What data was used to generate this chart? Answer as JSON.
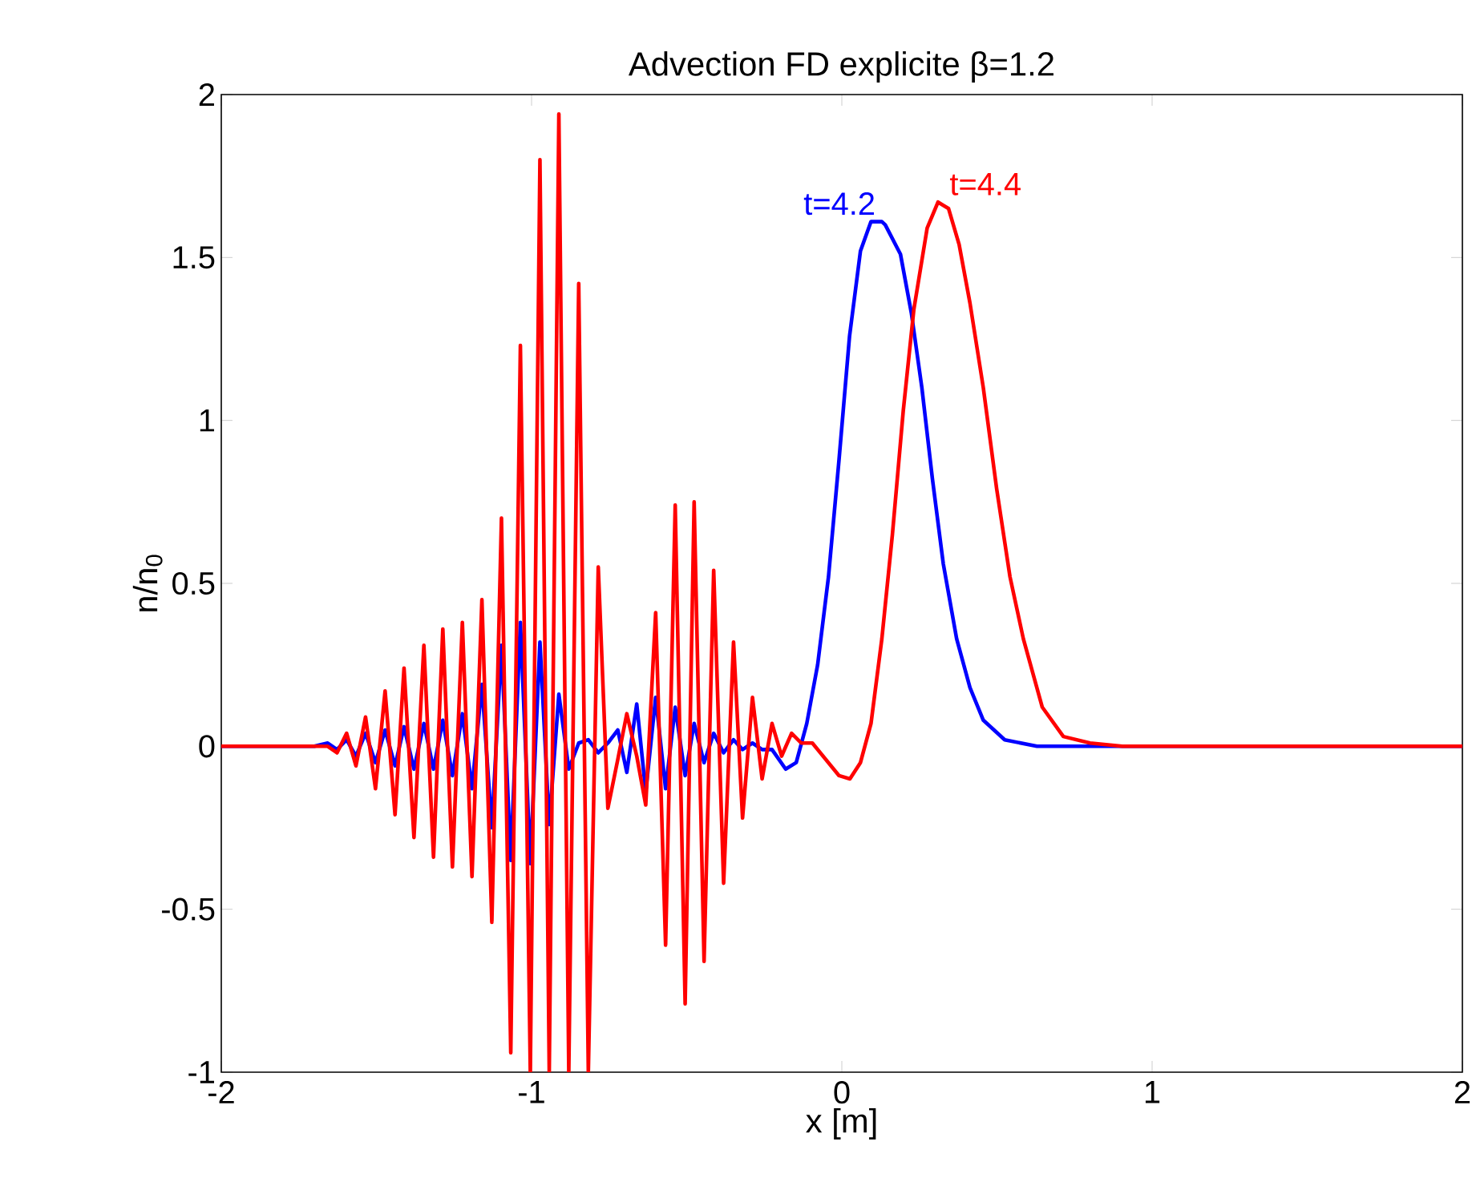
{
  "chart_data": {
    "type": "line",
    "title": "Advection FD explicite β=1.2",
    "xlabel": "x [m]",
    "ylabel": "n/n$_{0}$",
    "xlim": [
      -2,
      2
    ],
    "ylim": [
      -1,
      2
    ],
    "xticks": [
      -2,
      -1,
      0,
      1,
      2
    ],
    "yticks": [
      -1,
      -0.5,
      0,
      0.5,
      1,
      1.5,
      2
    ],
    "grid": false,
    "legend": false,
    "series": [
      {
        "name": "t=4.2",
        "color": "#0000ff",
        "x": [
          -2,
          -1.7,
          -1.657,
          -1.627,
          -1.596,
          -1.566,
          -1.535,
          -1.503,
          -1.472,
          -1.44,
          -1.411,
          -1.379,
          -1.347,
          -1.316,
          -1.286,
          -1.255,
          -1.223,
          -1.192,
          -1.16,
          -1.128,
          -1.097,
          -1.067,
          -1.036,
          -1.004,
          -0.973,
          -0.943,
          -0.912,
          -0.88,
          -0.848,
          -0.817,
          -0.785,
          -0.754,
          -0.722,
          -0.693,
          -0.661,
          -0.632,
          -0.6,
          -0.568,
          -0.537,
          -0.505,
          -0.476,
          -0.444,
          -0.413,
          -0.381,
          -0.349,
          -0.32,
          -0.288,
          -0.257,
          -0.225,
          -0.181,
          -0.147,
          -0.113,
          -0.078,
          -0.043,
          -0.009,
          0.025,
          0.06,
          0.094,
          0.129,
          0.14,
          0.189,
          0.224,
          0.258,
          0.292,
          0.327,
          0.37,
          0.413,
          0.456,
          0.525,
          0.629,
          0.8,
          2
        ],
        "values": [
          0,
          0,
          0.01,
          -0.01,
          0.02,
          -0.03,
          0.04,
          -0.05,
          0.05,
          -0.06,
          0.06,
          -0.07,
          0.07,
          -0.07,
          0.08,
          -0.09,
          0.1,
          -0.13,
          0.19,
          -0.25,
          0.31,
          -0.35,
          0.38,
          -0.36,
          0.32,
          -0.24,
          0.16,
          -0.07,
          0.01,
          0.02,
          -0.02,
          0.01,
          0.05,
          -0.08,
          0.13,
          -0.14,
          0.15,
          -0.13,
          0.12,
          -0.09,
          0.07,
          -0.05,
          0.04,
          -0.02,
          0.02,
          -0.01,
          0.01,
          -0.01,
          -0.01,
          -0.07,
          -0.05,
          0.07,
          0.25,
          0.52,
          0.88,
          1.26,
          1.52,
          1.61,
          1.61,
          1.6,
          1.51,
          1.33,
          1.1,
          0.82,
          0.56,
          0.33,
          0.18,
          0.08,
          0.02,
          0,
          0,
          0
        ]
      },
      {
        "name": "t=4.4",
        "color": "#ff0000",
        "x": [
          -2,
          -1.726,
          -1.657,
          -1.627,
          -1.596,
          -1.566,
          -1.535,
          -1.503,
          -1.472,
          -1.44,
          -1.411,
          -1.379,
          -1.347,
          -1.316,
          -1.286,
          -1.255,
          -1.223,
          -1.192,
          -1.16,
          -1.128,
          -1.097,
          -1.067,
          -1.036,
          -1.004,
          -0.973,
          -0.943,
          -0.912,
          -0.88,
          -0.848,
          -0.817,
          -0.785,
          -0.754,
          -0.722,
          -0.693,
          -0.661,
          -0.632,
          -0.6,
          -0.568,
          -0.537,
          -0.505,
          -0.476,
          -0.444,
          -0.413,
          -0.381,
          -0.349,
          -0.32,
          -0.288,
          -0.257,
          -0.225,
          -0.194,
          -0.162,
          -0.131,
          -0.095,
          -0.009,
          0.026,
          0.06,
          0.094,
          0.129,
          0.163,
          0.198,
          0.232,
          0.275,
          0.31,
          0.344,
          0.378,
          0.413,
          0.456,
          0.499,
          0.542,
          0.585,
          0.646,
          0.714,
          0.8,
          0.904,
          2
        ],
        "values": [
          0,
          0,
          0,
          -0.02,
          0.04,
          -0.06,
          0.09,
          -0.13,
          0.17,
          -0.21,
          0.24,
          -0.28,
          0.31,
          -0.34,
          0.36,
          -0.37,
          0.38,
          -0.4,
          0.45,
          -0.54,
          0.7,
          -0.94,
          1.23,
          -1,
          1.8,
          -1,
          1.94,
          -1,
          1.42,
          -1,
          0.55,
          -0.19,
          -0.04,
          0.1,
          -0.03,
          -0.18,
          0.41,
          -0.61,
          0.74,
          -0.79,
          0.75,
          -0.66,
          0.54,
          -0.42,
          0.32,
          -0.22,
          0.15,
          -0.1,
          0.07,
          -0.03,
          0.04,
          0.01,
          0.01,
          -0.09,
          -0.1,
          -0.05,
          0.07,
          0.33,
          0.65,
          1.03,
          1.34,
          1.59,
          1.67,
          1.65,
          1.54,
          1.36,
          1.1,
          0.79,
          0.52,
          0.33,
          0.12,
          0.03,
          0.01,
          0,
          0
        ]
      }
    ]
  }
}
